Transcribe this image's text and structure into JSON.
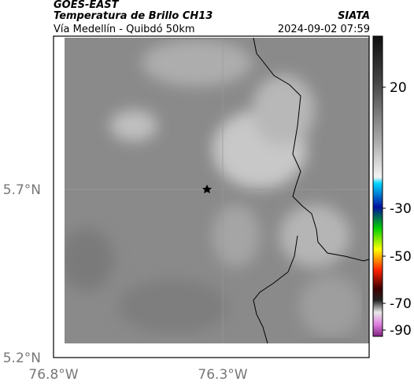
{
  "header": {
    "title": "GOES-EAST",
    "subtitle": "Temperatura de Brillo CH13",
    "region": "Vía Medellín - Quibdó 50km",
    "source": "SIATA",
    "timestamp": "2024-09-02 07:59"
  },
  "map": {
    "lat_labels": [
      "5.7°N",
      "5.2°N"
    ],
    "lon_labels": [
      "76.8°W",
      "76.3°W"
    ]
  },
  "colorbar": {
    "ticks": [
      20,
      -30,
      -50,
      -70,
      -90
    ]
  }
}
